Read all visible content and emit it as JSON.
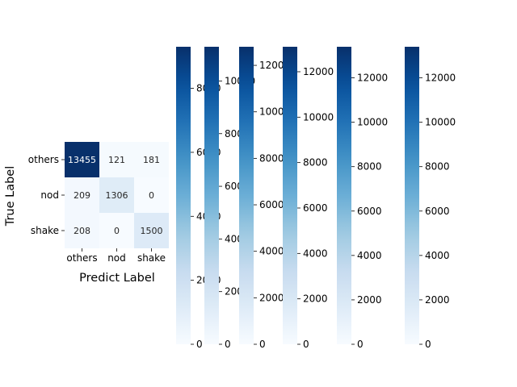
{
  "chart_data": {
    "type": "heatmap",
    "xlabel": "Predict Label",
    "ylabel": "True Label",
    "x_tick_labels": [
      "others",
      "nod",
      "shake"
    ],
    "y_tick_labels": [
      "others",
      "nod",
      "shake"
    ],
    "overlaid_matrices": 6,
    "cells": [
      {
        "row": "others",
        "col": "others",
        "annotation": "13455",
        "shade": 1.0
      },
      {
        "row": "others",
        "col": "nod",
        "annotation": "121",
        "shade": 0.01
      },
      {
        "row": "others",
        "col": "shake",
        "annotation": "181",
        "shade": 0.01
      },
      {
        "row": "nod",
        "col": "others",
        "annotation": "209",
        "shade": 0.02
      },
      {
        "row": "nod",
        "col": "nod",
        "annotation": "1306",
        "shade": 0.12
      },
      {
        "row": "nod",
        "col": "shake",
        "annotation": "0",
        "shade": 0.0
      },
      {
        "row": "shake",
        "col": "others",
        "annotation": "208",
        "shade": 0.02
      },
      {
        "row": "shake",
        "col": "nod",
        "annotation": "0",
        "shade": 0.0
      },
      {
        "row": "shake",
        "col": "shake",
        "annotation": "1500",
        "shade": 0.13
      }
    ],
    "colorbars": [
      {
        "max": 9300,
        "ticks": []
      },
      {
        "max": 9300,
        "ticks": [
          0,
          2000,
          4000,
          6000,
          8000
        ]
      },
      {
        "max": 11300,
        "ticks": [
          0,
          2000,
          4000,
          6000,
          8000,
          10000
        ]
      },
      {
        "max": 12800,
        "ticks": [
          0,
          2000,
          4000,
          6000,
          8000,
          10000,
          12000
        ]
      },
      {
        "max": 13100,
        "ticks": [
          0,
          2000,
          4000,
          6000,
          8000,
          10000,
          12000
        ]
      },
      {
        "max": 13400,
        "ticks": [
          0,
          2000,
          4000,
          6000,
          8000,
          10000,
          12000
        ]
      },
      {
        "max": 13400,
        "ticks": [
          0,
          2000,
          4000,
          6000,
          8000,
          10000,
          12000
        ]
      }
    ],
    "colormap": "Blues",
    "colormap_light": "#f7fbff",
    "colormap_dark": "#08306b",
    "grid": false,
    "legend": "colorbars-right"
  }
}
